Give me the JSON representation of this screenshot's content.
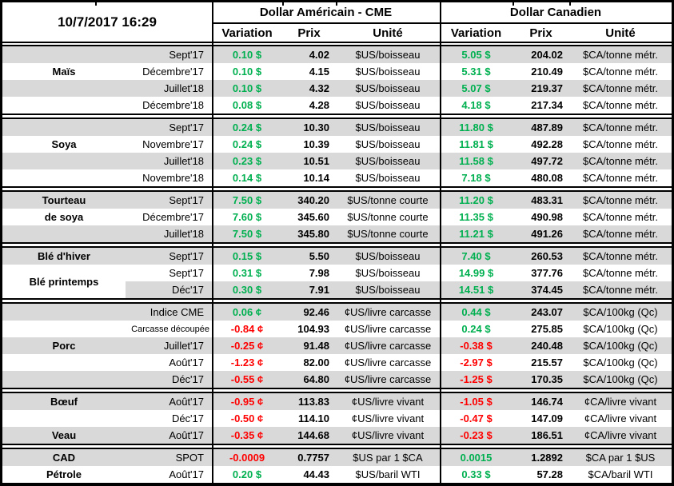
{
  "header": {
    "timestamp": "10/7/2017 16:29",
    "us_title": "Dollar Américain - CME",
    "ca_title": "Dollar Canadien",
    "col_variation": "Variation",
    "col_prix": "Prix",
    "col_unite": "Unité"
  },
  "colors": {
    "positive": "#00B050",
    "negative": "#FF0000",
    "stripe": "#D9D9D9",
    "border": "#000000"
  },
  "sections": [
    {
      "labels": [
        {
          "text": "Maïs",
          "row": 1,
          "span": 1
        }
      ],
      "rows": [
        {
          "month": "Sept'17",
          "us": {
            "v": "0.10 $",
            "dir": "up",
            "p": "4.02",
            "u": "$US/boisseau"
          },
          "ca": {
            "v": "5.05 $",
            "dir": "up",
            "p": "204.02",
            "u": "$CA/tonne métr."
          }
        },
        {
          "month": "Décembre'17",
          "us": {
            "v": "0.10 $",
            "dir": "up",
            "p": "4.15",
            "u": "$US/boisseau"
          },
          "ca": {
            "v": "5.31 $",
            "dir": "up",
            "p": "210.49",
            "u": "$CA/tonne métr."
          }
        },
        {
          "month": "Juillet'18",
          "us": {
            "v": "0.10 $",
            "dir": "up",
            "p": "4.32",
            "u": "$US/boisseau"
          },
          "ca": {
            "v": "5.07 $",
            "dir": "up",
            "p": "219.37",
            "u": "$CA/tonne métr."
          }
        },
        {
          "month": "Décembre'18",
          "us": {
            "v": "0.08 $",
            "dir": "up",
            "p": "4.28",
            "u": "$US/boisseau"
          },
          "ca": {
            "v": "4.18 $",
            "dir": "up",
            "p": "217.34",
            "u": "$CA/tonne métr."
          }
        }
      ]
    },
    {
      "labels": [
        {
          "text": "Soya",
          "row": 1,
          "span": 1
        }
      ],
      "rows": [
        {
          "month": "Sept'17",
          "us": {
            "v": "0.24 $",
            "dir": "up",
            "p": "10.30",
            "u": "$US/boisseau"
          },
          "ca": {
            "v": "11.80 $",
            "dir": "up",
            "p": "487.89",
            "u": "$CA/tonne métr."
          }
        },
        {
          "month": "Novembre'17",
          "us": {
            "v": "0.24 $",
            "dir": "up",
            "p": "10.39",
            "u": "$US/boisseau"
          },
          "ca": {
            "v": "11.81 $",
            "dir": "up",
            "p": "492.28",
            "u": "$CA/tonne métr."
          }
        },
        {
          "month": "Juillet'18",
          "us": {
            "v": "0.23 $",
            "dir": "up",
            "p": "10.51",
            "u": "$US/boisseau"
          },
          "ca": {
            "v": "11.58 $",
            "dir": "up",
            "p": "497.72",
            "u": "$CA/tonne métr."
          }
        },
        {
          "month": "Novembre'18",
          "us": {
            "v": "0.14 $",
            "dir": "up",
            "p": "10.14",
            "u": "$US/boisseau"
          },
          "ca": {
            "v": "7.18 $",
            "dir": "up",
            "p": "480.08",
            "u": "$CA/tonne métr."
          }
        }
      ]
    },
    {
      "labels": [
        {
          "text": "Tourteau",
          "row": 0,
          "span": 1
        },
        {
          "text": "de soya",
          "row": 1,
          "span": 1
        }
      ],
      "rows": [
        {
          "month": "Sept'17",
          "us": {
            "v": "7.50 $",
            "dir": "up",
            "p": "340.20",
            "u": "$US/tonne courte"
          },
          "ca": {
            "v": "11.20 $",
            "dir": "up",
            "p": "483.31",
            "u": "$CA/tonne métr."
          }
        },
        {
          "month": "Décembre'17",
          "us": {
            "v": "7.60 $",
            "dir": "up",
            "p": "345.60",
            "u": "$US/tonne courte"
          },
          "ca": {
            "v": "11.35 $",
            "dir": "up",
            "p": "490.98",
            "u": "$CA/tonne métr."
          }
        },
        {
          "month": "Juillet'18",
          "us": {
            "v": "7.50 $",
            "dir": "up",
            "p": "345.80",
            "u": "$US/tonne courte"
          },
          "ca": {
            "v": "11.21 $",
            "dir": "up",
            "p": "491.26",
            "u": "$CA/tonne métr."
          }
        }
      ]
    },
    {
      "labels": [
        {
          "text": "Blé d'hiver",
          "row": 0,
          "span": 1
        },
        {
          "text": "Blé printemps",
          "row": 1,
          "span": 2
        }
      ],
      "rows": [
        {
          "month": "Sept'17",
          "us": {
            "v": "0.15 $",
            "dir": "up",
            "p": "5.50",
            "u": "$US/boisseau"
          },
          "ca": {
            "v": "7.40 $",
            "dir": "up",
            "p": "260.53",
            "u": "$CA/tonne métr."
          }
        },
        {
          "month": "Sept'17",
          "us": {
            "v": "0.31 $",
            "dir": "up",
            "p": "7.98",
            "u": "$US/boisseau"
          },
          "ca": {
            "v": "14.99 $",
            "dir": "up",
            "p": "377.76",
            "u": "$CA/tonne métr."
          }
        },
        {
          "month": "Déc'17",
          "us": {
            "v": "0.30 $",
            "dir": "up",
            "p": "7.91",
            "u": "$US/boisseau"
          },
          "ca": {
            "v": "14.51 $",
            "dir": "up",
            "p": "374.45",
            "u": "$CA/tonne métr."
          }
        }
      ]
    },
    {
      "labels": [
        {
          "text": "Porc",
          "row": 2,
          "span": 1
        }
      ],
      "rows": [
        {
          "month": "Indice CME",
          "us": {
            "v": "0.06 ¢",
            "dir": "up",
            "p": "92.46",
            "u": "¢US/livre carcasse"
          },
          "ca": {
            "v": "0.44 $",
            "dir": "up",
            "p": "243.07",
            "u": "$CA/100kg (Qc)"
          }
        },
        {
          "month": "Carcasse découpée",
          "small": true,
          "us": {
            "v": "-0.84 ¢",
            "dir": "down",
            "p": "104.93",
            "u": "¢US/livre carcasse"
          },
          "ca": {
            "v": "0.24 $",
            "dir": "up",
            "p": "275.85",
            "u": "$CA/100kg (Qc)"
          }
        },
        {
          "month": "Juillet'17",
          "us": {
            "v": "-0.25 ¢",
            "dir": "down",
            "p": "91.48",
            "u": "¢US/livre carcasse"
          },
          "ca": {
            "v": "-0.38 $",
            "dir": "down",
            "p": "240.48",
            "u": "$CA/100kg (Qc)"
          }
        },
        {
          "month": "Août'17",
          "us": {
            "v": "-1.23 ¢",
            "dir": "down",
            "p": "82.00",
            "u": "¢US/livre carcasse"
          },
          "ca": {
            "v": "-2.97 $",
            "dir": "down",
            "p": "215.57",
            "u": "$CA/100kg (Qc)"
          }
        },
        {
          "month": "Déc'17",
          "us": {
            "v": "-0.55 ¢",
            "dir": "down",
            "p": "64.80",
            "u": "¢US/livre carcasse"
          },
          "ca": {
            "v": "-1.25 $",
            "dir": "down",
            "p": "170.35",
            "u": "$CA/100kg (Qc)"
          }
        }
      ]
    },
    {
      "labels": [
        {
          "text": "Bœuf",
          "row": 0,
          "span": 1
        },
        {
          "text": "Veau",
          "row": 2,
          "span": 1
        }
      ],
      "rows": [
        {
          "month": "Août'17",
          "us": {
            "v": "-0.95 ¢",
            "dir": "down",
            "p": "113.83",
            "u": "¢US/livre vivant"
          },
          "ca": {
            "v": "-1.05 $",
            "dir": "down",
            "p": "146.74",
            "u": "¢CA/livre vivant"
          }
        },
        {
          "month": "Déc'17",
          "us": {
            "v": "-0.50 ¢",
            "dir": "down",
            "p": "114.10",
            "u": "¢US/livre vivant"
          },
          "ca": {
            "v": "-0.47 $",
            "dir": "down",
            "p": "147.09",
            "u": "¢CA/livre vivant"
          }
        },
        {
          "month": "Août'17",
          "us": {
            "v": "-0.35 ¢",
            "dir": "down",
            "p": "144.68",
            "u": "¢US/livre vivant"
          },
          "ca": {
            "v": "-0.23 $",
            "dir": "down",
            "p": "186.51",
            "u": "¢CA/livre vivant"
          }
        }
      ]
    },
    {
      "labels": [
        {
          "text": "CAD",
          "row": 0,
          "span": 1
        },
        {
          "text": "Pétrole",
          "row": 1,
          "span": 1
        }
      ],
      "rows": [
        {
          "month": "SPOT",
          "us": {
            "v": "-0.0009",
            "dir": "down",
            "p": "0.7757",
            "u": "$US par 1 $CA"
          },
          "ca": {
            "v": "0.0015",
            "dir": "up",
            "p": "1.2892",
            "u": "$CA par 1 $US"
          }
        },
        {
          "month": "Août'17",
          "us": {
            "v": "0.20 $",
            "dir": "up",
            "p": "44.43",
            "u": "$US/baril WTI"
          },
          "ca": {
            "v": "0.33 $",
            "dir": "up",
            "p": "57.28",
            "u": "$CA/baril WTI"
          }
        }
      ]
    }
  ]
}
